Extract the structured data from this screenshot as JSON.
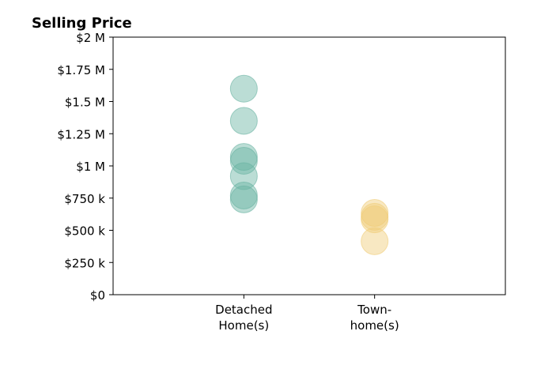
{
  "chart_data": {
    "type": "scatter",
    "title": "Selling Price",
    "xlabel": "",
    "ylabel": "",
    "categories": [
      {
        "lines": [
          "Detached",
          "Home(s)"
        ]
      },
      {
        "lines": [
          "Town-",
          "home(s)"
        ]
      }
    ],
    "xlim": [
      -1,
      2
    ],
    "ylim": [
      0,
      2000000
    ],
    "yticks": [
      {
        "value": 0,
        "label": "$0"
      },
      {
        "value": 250000,
        "label": "$250 k"
      },
      {
        "value": 500000,
        "label": "$500 k"
      },
      {
        "value": 750000,
        "label": "$750 k"
      },
      {
        "value": 1000000,
        "label": "$1 M"
      },
      {
        "value": 1250000,
        "label": "$1.25 M"
      },
      {
        "value": 1500000,
        "label": "$1.5 M"
      },
      {
        "value": 1750000,
        "label": "$1.75 M"
      },
      {
        "value": 2000000,
        "label": "$2 M"
      }
    ],
    "grid": false,
    "legend": "none",
    "series": [
      {
        "category_index": 0,
        "color": "#69b3a2",
        "values": [
          1600000,
          1350000,
          1070000,
          1040000,
          920000,
          770000,
          740000
        ]
      },
      {
        "category_index": 1,
        "color": "#f0cd78",
        "values": [
          635000,
          605000,
          585000,
          415000
        ]
      }
    ]
  }
}
